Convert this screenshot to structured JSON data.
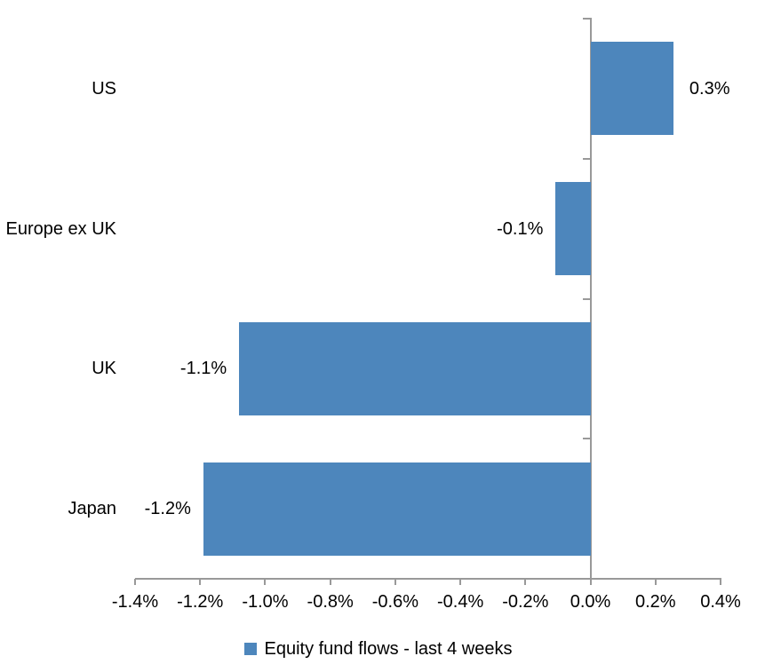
{
  "chart_data": {
    "type": "bar",
    "orientation": "horizontal",
    "title": "",
    "categories": [
      "US",
      "Europe ex UK",
      "UK",
      "Japan"
    ],
    "values": [
      0.3,
      -0.1,
      -1.1,
      -1.2
    ],
    "values_precise_pct": [
      0.255,
      -0.107,
      -1.08,
      -1.19
    ],
    "value_labels": [
      "0.3%",
      "-0.1%",
      "-1.1%",
      "-1.2%"
    ],
    "x_axis": {
      "min_pct": -1.4,
      "max_pct": 0.4,
      "tick_step_pct": 0.2,
      "tick_labels": [
        "-1.4%",
        "-1.2%",
        "-1.0%",
        "-0.8%",
        "-0.6%",
        "-0.4%",
        "-0.2%",
        "0.0%",
        "0.2%",
        "0.4%"
      ]
    },
    "grid": false,
    "legend": {
      "position": "bottom",
      "entries": [
        {
          "label": "Equity fund flows - last 4 weeks",
          "swatch_color": "#4d86bc"
        }
      ]
    },
    "colors": {
      "bar": "#4d86bc",
      "axis": "#999999",
      "text": "#000000",
      "background": "#ffffff"
    }
  }
}
